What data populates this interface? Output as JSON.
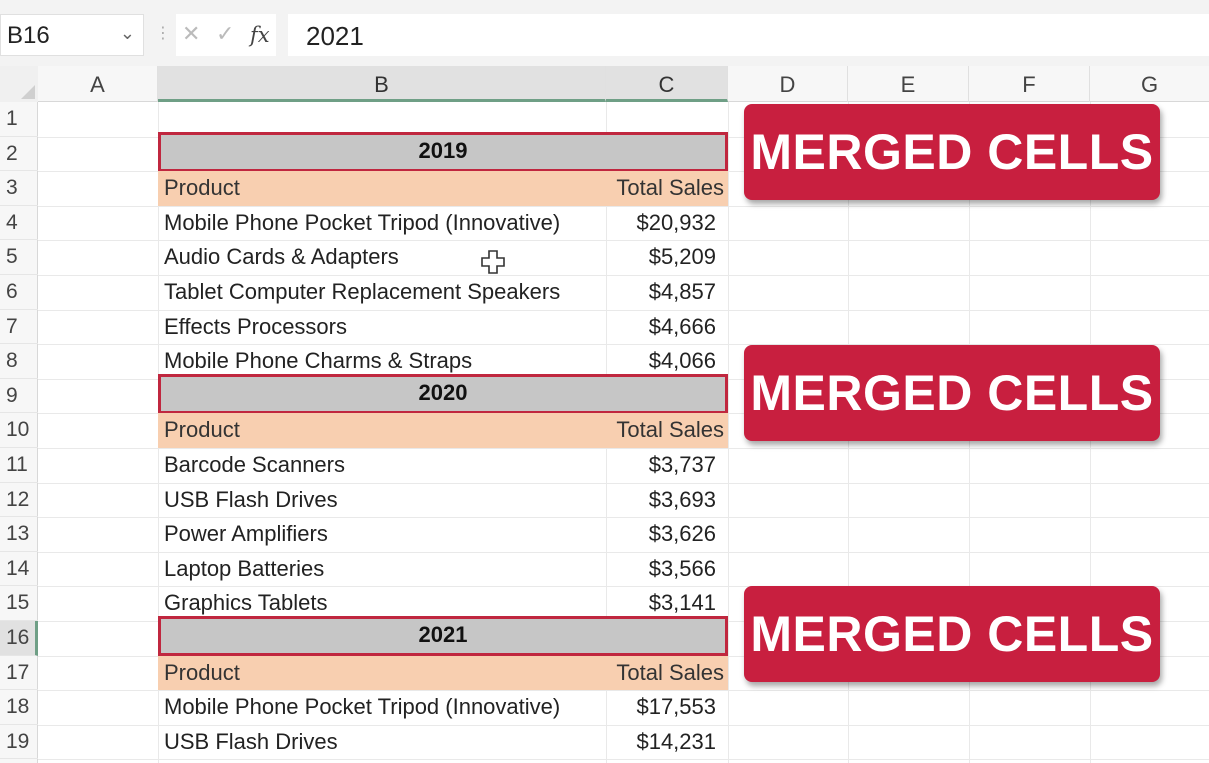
{
  "formula_bar": {
    "name_box": "B16",
    "cancel_icon": "close-icon",
    "enter_icon": "check-icon",
    "function_icon": "fx",
    "value": "2021"
  },
  "columns": [
    "A",
    "B",
    "C",
    "D",
    "E",
    "F",
    "G"
  ],
  "rows": [
    "1",
    "2",
    "3",
    "4",
    "5",
    "6",
    "7",
    "8",
    "9",
    "10",
    "11",
    "12",
    "13",
    "14",
    "15",
    "16",
    "17",
    "18",
    "19"
  ],
  "selected": {
    "cell": "B16",
    "row": "16"
  },
  "sections": [
    {
      "year": "2019",
      "header": {
        "product": "Product",
        "sales": "Total Sales"
      },
      "items": [
        {
          "product": "Mobile Phone Pocket Tripod (Innovative)",
          "sales": "$20,932"
        },
        {
          "product": "Audio Cards & Adapters",
          "sales": "$5,209"
        },
        {
          "product": "Tablet Computer Replacement Speakers",
          "sales": "$4,857"
        },
        {
          "product": "Effects Processors",
          "sales": "$4,666"
        },
        {
          "product": "Mobile Phone Charms & Straps",
          "sales": "$4,066"
        }
      ]
    },
    {
      "year": "2020",
      "header": {
        "product": "Product",
        "sales": "Total Sales"
      },
      "items": [
        {
          "product": "Barcode Scanners",
          "sales": "$3,737"
        },
        {
          "product": "USB Flash Drives",
          "sales": "$3,693"
        },
        {
          "product": "Power Amplifiers",
          "sales": "$3,626"
        },
        {
          "product": "Laptop Batteries",
          "sales": "$3,566"
        },
        {
          "product": "Graphics Tablets",
          "sales": "$3,141"
        }
      ]
    },
    {
      "year": "2021",
      "header": {
        "product": "Product",
        "sales": "Total Sales"
      },
      "items": [
        {
          "product": "Mobile Phone Pocket Tripod (Innovative)",
          "sales": "$17,553"
        },
        {
          "product": "USB Flash Drives",
          "sales": "$14,231"
        }
      ]
    }
  ],
  "callouts": [
    "MERGED CELLS",
    "MERGED CELLS",
    "MERGED CELLS"
  ],
  "colors": {
    "merged_fill": "#c6c6c6",
    "merged_border": "#c0273f",
    "header_fill": "#f8cfb0",
    "callout_fill": "#c81f3f",
    "selection_accent": "#6f9f86"
  }
}
